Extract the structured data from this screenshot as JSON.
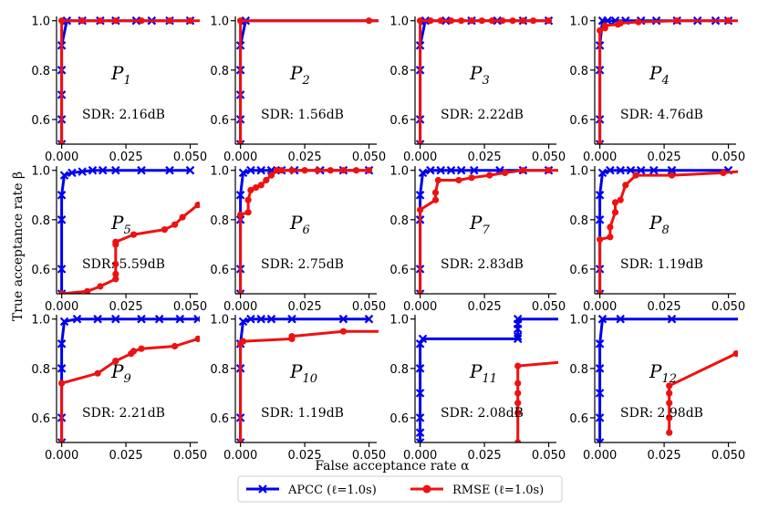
{
  "chart_data": {
    "type": "line",
    "title": "",
    "xlabel": "False acceptance rate α",
    "ylabel": "True acceptance rate β",
    "xlim": [
      -0.002,
      0.053
    ],
    "ylim": [
      0.5,
      1.01
    ],
    "xticks": [
      "0.000",
      "0.025",
      "0.050"
    ],
    "yticks": [
      "0.6",
      "0.8",
      "1.0"
    ],
    "xtick_values": [
      0,
      0.025,
      0.05
    ],
    "ytick_values": [
      0.6,
      0.8,
      1.0
    ],
    "legend": [
      {
        "name": "APCC (ℓ=1.0s)",
        "color": "#0000ee",
        "marker": "x"
      },
      {
        "name": "RMSE (ℓ=1.0s)",
        "color": "#ee1111",
        "marker": "o"
      }
    ],
    "legend_position": "bottom-center",
    "panels": [
      {
        "label": "P",
        "index": "1",
        "sdr": "SDR: 2.16dB",
        "apcc": {
          "x": [
            0,
            0,
            0,
            0,
            0,
            0.002,
            0.008,
            0.015,
            0.021,
            0.029,
            0.035,
            0.042,
            0.05
          ],
          "y": [
            0.5,
            0.6,
            0.7,
            0.8,
            0.9,
            1.0,
            1.0,
            1.0,
            1.0,
            1.0,
            1.0,
            1.0,
            1.0
          ]
        },
        "rmse": {
          "x": [
            0,
            0,
            0.008,
            0.015,
            0.021,
            0.031,
            0.042,
            0.05,
            0.06
          ],
          "y": [
            0.5,
            1.0,
            1.0,
            1.0,
            1.0,
            1.0,
            1.0,
            1.0,
            1.0
          ]
        }
      },
      {
        "label": "P",
        "index": "2",
        "sdr": "SDR: 1.56dB",
        "apcc": {
          "x": [
            0,
            0,
            0,
            0,
            0,
            0.002,
            0.06
          ],
          "y": [
            0.5,
            0.6,
            0.7,
            0.8,
            0.9,
            1.0,
            1.0
          ]
        },
        "rmse": {
          "x": [
            0,
            0,
            0.05,
            0.06
          ],
          "y": [
            0.5,
            1.0,
            1.0,
            1.0
          ]
        }
      },
      {
        "label": "P",
        "index": "3",
        "sdr": "SDR: 2.22dB",
        "apcc": {
          "x": [
            0,
            0,
            0,
            0,
            0.002,
            0.01,
            0.02,
            0.03,
            0.04,
            0.05
          ],
          "y": [
            0.5,
            0.6,
            0.8,
            0.9,
            1.0,
            1.0,
            1.0,
            1.0,
            1.0,
            1.0
          ]
        },
        "rmse": {
          "x": [
            0,
            0,
            0.004,
            0.008,
            0.012,
            0.016,
            0.02,
            0.024,
            0.028,
            0.032,
            0.036,
            0.04,
            0.044,
            0.05
          ],
          "y": [
            0.5,
            1.0,
            1.0,
            1.0,
            1.0,
            1.0,
            1.0,
            1.0,
            1.0,
            1.0,
            1.0,
            1.0,
            1.0,
            1.0
          ]
        }
      },
      {
        "label": "P",
        "index": "4",
        "sdr": "SDR: 4.76dB",
        "apcc": {
          "x": [
            0,
            0,
            0,
            0,
            0.001,
            0.003,
            0.006,
            0.01,
            0.016,
            0.022,
            0.03,
            0.038,
            0.045,
            0.05
          ],
          "y": [
            0.5,
            0.6,
            0.8,
            0.9,
            1.0,
            1.0,
            1.0,
            1.0,
            1.0,
            1.0,
            1.0,
            1.0,
            1.0,
            1.0
          ]
        },
        "rmse": {
          "x": [
            0,
            0,
            0.002,
            0.002,
            0.007,
            0.008,
            0.015,
            0.03,
            0.05,
            0.06
          ],
          "y": [
            0.5,
            0.96,
            0.97,
            0.98,
            0.985,
            0.99,
            0.995,
            1.0,
            1.0,
            1.0
          ]
        }
      },
      {
        "label": "P",
        "index": "5",
        "sdr": "SDR: 5.59dB",
        "apcc": {
          "x": [
            0,
            0,
            0,
            0,
            0.001,
            0.004,
            0.008,
            0.012,
            0.016,
            0.021,
            0.031,
            0.042,
            0.05
          ],
          "y": [
            0.5,
            0.6,
            0.8,
            0.9,
            0.98,
            0.99,
            0.995,
            1.0,
            1.0,
            1.0,
            1.0,
            1.0,
            1.0
          ]
        },
        "rmse": {
          "x": [
            0,
            0.01,
            0.015,
            0.021,
            0.021,
            0.021,
            0.021,
            0.021,
            0.028,
            0.04,
            0.044,
            0.047,
            0.053
          ],
          "y": [
            0.5,
            0.51,
            0.53,
            0.56,
            0.58,
            0.62,
            0.7,
            0.71,
            0.74,
            0.76,
            0.78,
            0.81,
            0.86
          ]
        }
      },
      {
        "label": "P",
        "index": "6",
        "sdr": "SDR: 2.75dB",
        "apcc": {
          "x": [
            0,
            0,
            0,
            0,
            0.001,
            0.004,
            0.008,
            0.012,
            0.016,
            0.021,
            0.031,
            0.04,
            0.05
          ],
          "y": [
            0.5,
            0.6,
            0.8,
            0.9,
            0.99,
            1.0,
            1.0,
            1.0,
            1.0,
            1.0,
            1.0,
            1.0,
            1.0
          ]
        },
        "rmse": {
          "x": [
            0,
            0,
            0.003,
            0.003,
            0.004,
            0.006,
            0.008,
            0.01,
            0.012,
            0.014,
            0.016,
            0.02,
            0.025,
            0.03,
            0.035,
            0.04,
            0.045,
            0.05
          ],
          "y": [
            0.5,
            0.82,
            0.83,
            0.88,
            0.92,
            0.93,
            0.94,
            0.96,
            0.98,
            1.0,
            1.0,
            1.0,
            1.0,
            1.0,
            1.0,
            1.0,
            1.0,
            1.0
          ]
        }
      },
      {
        "label": "P",
        "index": "7",
        "sdr": "SDR: 2.83dB",
        "apcc": {
          "x": [
            0,
            0,
            0,
            0,
            0.001,
            0.004,
            0.008,
            0.012,
            0.016,
            0.021,
            0.031,
            0.04,
            0.05
          ],
          "y": [
            0.5,
            0.6,
            0.8,
            0.9,
            0.99,
            1.0,
            1.0,
            1.0,
            1.0,
            1.0,
            1.0,
            1.0,
            1.0
          ]
        },
        "rmse": {
          "x": [
            0,
            0,
            0.006,
            0.006,
            0.007,
            0.015,
            0.02,
            0.027,
            0.033,
            0.04,
            0.05,
            0.06
          ],
          "y": [
            0.5,
            0.84,
            0.88,
            0.91,
            0.96,
            0.96,
            0.97,
            0.98,
            0.99,
            1.0,
            1.0,
            1.0
          ]
        }
      },
      {
        "label": "P",
        "index": "8",
        "sdr": "SDR: 1.19dB",
        "apcc": {
          "x": [
            0,
            0,
            0,
            0,
            0.001,
            0.004,
            0.008,
            0.012,
            0.016,
            0.021,
            0.028,
            0.05
          ],
          "y": [
            0.5,
            0.6,
            0.8,
            0.9,
            0.99,
            1.0,
            1.0,
            1.0,
            1.0,
            1.0,
            1.0,
            1.0
          ]
        },
        "rmse": {
          "x": [
            0,
            0,
            0.004,
            0.004,
            0.006,
            0.006,
            0.008,
            0.01,
            0.014,
            0.028,
            0.048,
            0.06
          ],
          "y": [
            0.5,
            0.72,
            0.73,
            0.77,
            0.83,
            0.87,
            0.88,
            0.94,
            0.98,
            0.98,
            0.99,
            1.0
          ]
        }
      },
      {
        "label": "P",
        "index": "9",
        "sdr": "SDR: 2.21dB",
        "apcc": {
          "x": [
            0,
            0,
            0,
            0,
            0.001,
            0.006,
            0.014,
            0.021,
            0.031,
            0.038,
            0.046,
            0.053
          ],
          "y": [
            0.5,
            0.6,
            0.8,
            0.9,
            0.99,
            1.0,
            1.0,
            1.0,
            1.0,
            1.0,
            1.0,
            1.0
          ]
        },
        "rmse": {
          "x": [
            0,
            0,
            0.014,
            0.021,
            0.021,
            0.027,
            0.028,
            0.031,
            0.044,
            0.053,
            0.06
          ],
          "y": [
            0.5,
            0.74,
            0.78,
            0.83,
            0.83,
            0.86,
            0.87,
            0.88,
            0.89,
            0.92,
            0.93
          ]
        }
      },
      {
        "label": "P",
        "index": "10",
        "sdr": "SDR: 1.19dB",
        "apcc": {
          "x": [
            0,
            0,
            0,
            0,
            0.001,
            0.004,
            0.008,
            0.012,
            0.02,
            0.04,
            0.05
          ],
          "y": [
            0.5,
            0.6,
            0.8,
            0.9,
            0.99,
            1.0,
            1.0,
            1.0,
            1.0,
            1.0,
            1.0
          ]
        },
        "rmse": {
          "x": [
            0,
            0,
            0.001,
            0.02,
            0.02,
            0.04,
            0.06
          ],
          "y": [
            0.5,
            0.9,
            0.91,
            0.92,
            0.93,
            0.95,
            0.95
          ]
        }
      },
      {
        "label": "P",
        "index": "11",
        "sdr": "SDR: 2.08dB",
        "apcc": {
          "x": [
            0,
            0,
            0,
            0,
            0,
            0,
            0.001,
            0.038,
            0.038,
            0.038,
            0.038,
            0.038,
            0.06
          ],
          "y": [
            0.5,
            0.54,
            0.6,
            0.7,
            0.8,
            0.9,
            0.92,
            0.92,
            0.93,
            0.96,
            0.98,
            1.0,
            1.0
          ]
        },
        "rmse": {
          "x": [
            0.038,
            0.038,
            0.038,
            0.038,
            0.038,
            0.038,
            0.06
          ],
          "y": [
            0.5,
            0.62,
            0.66,
            0.7,
            0.74,
            0.81,
            0.83
          ]
        }
      },
      {
        "label": "P",
        "index": "12",
        "sdr": "SDR: 2.98dB",
        "apcc": {
          "x": [
            0,
            0,
            0,
            0,
            0,
            0.001,
            0.008,
            0.028,
            0.06
          ],
          "y": [
            0.5,
            0.6,
            0.7,
            0.8,
            0.9,
            1.0,
            1.0,
            1.0,
            1.0
          ]
        },
        "rmse": {
          "x": [
            0.027,
            0.027,
            0.027,
            0.027,
            0.027,
            0.053,
            0.06
          ],
          "y": [
            0.54,
            0.6,
            0.66,
            0.7,
            0.73,
            0.86,
            0.88
          ]
        }
      }
    ]
  }
}
